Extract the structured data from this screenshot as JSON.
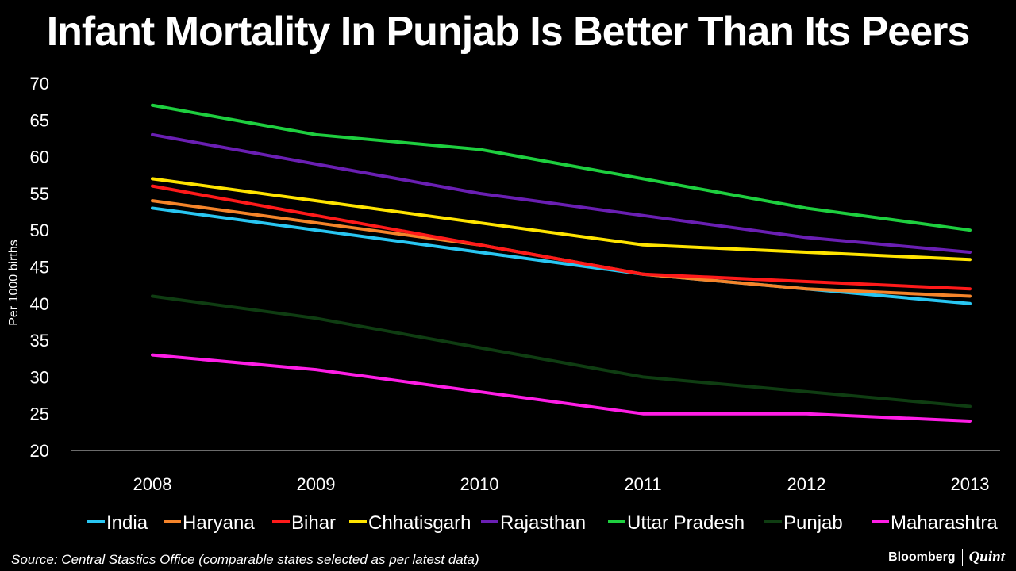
{
  "chart_data": {
    "type": "line",
    "title": "Infant Mortality In Punjab Is Better Than Its Peers",
    "xlabel": "",
    "ylabel": "Per 1000 births",
    "ylim": [
      20,
      70
    ],
    "yticks": [
      20,
      25,
      30,
      35,
      40,
      45,
      50,
      55,
      60,
      65,
      70
    ],
    "categories": [
      "2008",
      "2009",
      "2010",
      "2011",
      "2012",
      "2013"
    ],
    "legend_position": "bottom",
    "series": [
      {
        "name": "India",
        "color": "#29c6f2",
        "values": [
          53,
          50,
          47,
          44,
          42,
          40
        ]
      },
      {
        "name": "Haryana",
        "color": "#f5842a",
        "values": [
          54,
          51,
          48,
          44,
          42,
          41
        ]
      },
      {
        "name": "Bihar",
        "color": "#ff1a1a",
        "values": [
          56,
          52,
          48,
          44,
          43,
          42
        ]
      },
      {
        "name": "Chhatisgarh",
        "color": "#ffe400",
        "values": [
          57,
          54,
          51,
          48,
          47,
          46
        ]
      },
      {
        "name": "Rajasthan",
        "color": "#6a1fb3",
        "values": [
          63,
          59,
          55,
          52,
          49,
          47
        ]
      },
      {
        "name": "Uttar Pradesh",
        "color": "#1ecf3f",
        "values": [
          67,
          63,
          61,
          57,
          53,
          50
        ]
      },
      {
        "name": "Punjab",
        "color": "#0f3d12",
        "values": [
          41,
          38,
          34,
          30,
          28,
          26
        ]
      },
      {
        "name": "Maharashtra",
        "color": "#ff1ee6",
        "values": [
          33,
          31,
          28,
          25,
          25,
          24
        ]
      }
    ]
  },
  "source": "Source: Central Stastics Office (comparable states selected as per latest data)",
  "brand": {
    "primary": "Bloomberg",
    "secondary": "Quint"
  }
}
